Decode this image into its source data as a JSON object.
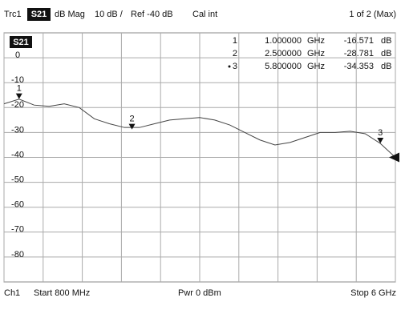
{
  "header": {
    "trace": "Trc1",
    "param": "S21",
    "format": "dB Mag",
    "scale": "10 dB /",
    "ref": "Ref -40 dB",
    "cal": "Cal int",
    "page": "1 of 2 (Max)"
  },
  "chart_data": {
    "type": "line",
    "trace_label": "S21",
    "x": [
      0.8,
      1.0,
      1.2,
      1.4,
      1.6,
      1.8,
      2.0,
      2.2,
      2.4,
      2.6,
      2.8,
      3.0,
      3.2,
      3.4,
      3.6,
      3.8,
      4.0,
      4.2,
      4.4,
      4.6,
      4.8,
      5.0,
      5.2,
      5.4,
      5.6,
      5.8,
      6.0
    ],
    "series": [
      {
        "name": "S21",
        "color": "#444444",
        "values": [
          -18.5,
          -16.6,
          -19,
          -19.5,
          -18.5,
          -20,
          -24.5,
          -26.5,
          -28,
          -28,
          -26.5,
          -25,
          -24.5,
          -24,
          -25,
          -27,
          -30,
          -33,
          -35,
          -34,
          -32,
          -30,
          -30,
          -29.5,
          -30.5,
          -34.4,
          -40
        ]
      }
    ],
    "xlim": [
      0.8,
      6.0
    ],
    "xticks": [
      0.8,
      1.32,
      1.84,
      2.36,
      2.88,
      3.4,
      3.92,
      4.44,
      4.96,
      5.48,
      6.0
    ],
    "ylim": [
      -90,
      10
    ],
    "yticks": [
      0,
      -10,
      -20,
      -30,
      -40,
      -50,
      -60,
      -70,
      -80
    ],
    "grid": true,
    "ref_level": -40,
    "markers": [
      {
        "name": "1",
        "x": {
          "value": 1.0,
          "label": "1.000000"
        },
        "x_unit": "GHz",
        "y": -16.571,
        "y_unit": "dB",
        "active": false
      },
      {
        "name": "2",
        "x": {
          "value": 2.5,
          "label": "2.500000"
        },
        "x_unit": "GHz",
        "y": -28.781,
        "y_unit": "dB",
        "active": false
      },
      {
        "name": "3",
        "x": {
          "value": 5.8,
          "label": "5.800000"
        },
        "x_unit": "GHz",
        "y": -34.353,
        "y_unit": "dB",
        "active": true
      }
    ]
  },
  "footer": {
    "channel": "Ch1",
    "start": "Start 800 MHz",
    "power": "Pwr 0 dBm",
    "stop": "Stop 6 GHz"
  }
}
